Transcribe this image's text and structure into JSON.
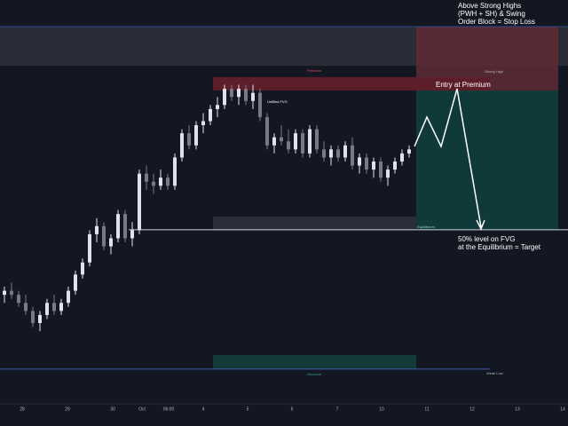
{
  "chart_data": {
    "type": "candlestick",
    "ylim": [
      0,
      100
    ],
    "candles": [
      [
        27,
        29,
        25,
        28
      ],
      [
        28,
        30,
        26,
        27
      ],
      [
        27,
        28,
        24,
        25
      ],
      [
        25,
        27,
        22,
        23
      ],
      [
        23,
        24,
        19,
        20
      ],
      [
        20,
        23,
        18,
        22
      ],
      [
        22,
        26,
        21,
        25
      ],
      [
        25,
        27,
        22,
        23
      ],
      [
        23,
        26,
        22,
        25
      ],
      [
        25,
        29,
        24,
        28
      ],
      [
        28,
        33,
        27,
        32
      ],
      [
        32,
        36,
        31,
        35
      ],
      [
        35,
        43,
        34,
        42
      ],
      [
        42,
        46,
        40,
        44
      ],
      [
        44,
        45,
        38,
        39
      ],
      [
        39,
        42,
        37,
        41
      ],
      [
        41,
        48,
        40,
        47
      ],
      [
        47,
        48,
        40,
        41
      ],
      [
        41,
        45,
        39,
        43
      ],
      [
        43,
        58,
        42,
        57
      ],
      [
        57,
        59,
        53,
        55
      ],
      [
        55,
        57,
        52,
        54
      ],
      [
        54,
        58,
        53,
        56
      ],
      [
        56,
        57,
        53,
        54
      ],
      [
        54,
        62,
        53,
        61
      ],
      [
        61,
        68,
        60,
        67
      ],
      [
        67,
        69,
        63,
        64
      ],
      [
        64,
        70,
        63,
        69
      ],
      [
        69,
        72,
        67,
        70
      ],
      [
        70,
        74,
        69,
        73
      ],
      [
        73,
        76,
        71,
        74
      ],
      [
        74,
        79,
        73,
        78
      ],
      [
        78,
        79,
        75,
        76
      ],
      [
        76,
        79,
        74,
        78
      ],
      [
        78,
        79,
        74,
        75
      ],
      [
        75,
        79,
        73,
        77
      ],
      [
        77,
        78,
        70,
        71
      ],
      [
        71,
        72,
        63,
        64
      ],
      [
        64,
        67,
        62,
        66
      ],
      [
        66,
        69,
        64,
        65
      ],
      [
        65,
        68,
        62,
        63
      ],
      [
        63,
        68,
        62,
        67
      ],
      [
        67,
        68,
        61,
        62
      ],
      [
        62,
        69,
        61,
        68
      ],
      [
        68,
        69,
        62,
        63
      ],
      [
        63,
        65,
        60,
        61
      ],
      [
        61,
        64,
        59,
        63
      ],
      [
        63,
        64,
        60,
        61
      ],
      [
        61,
        65,
        60,
        64
      ],
      [
        64,
        66,
        58,
        59
      ],
      [
        59,
        62,
        57,
        61
      ],
      [
        61,
        62,
        57,
        58
      ],
      [
        58,
        61,
        56,
        60
      ],
      [
        60,
        61,
        55,
        56
      ],
      [
        56,
        59,
        54,
        58
      ],
      [
        58,
        61,
        57,
        60
      ],
      [
        60,
        63,
        59,
        62
      ],
      [
        62,
        64,
        61,
        63
      ]
    ],
    "x_axis_labels": [
      "28",
      "29",
      "30",
      "Oct",
      "06:00",
      "4",
      "5",
      "6",
      "7",
      "10",
      "11",
      "12",
      "13",
      "14"
    ],
    "zones": [
      {
        "label": "Premium",
        "range": [
          80.9,
          77.6
        ],
        "color": "#5c1f2a"
      },
      {
        "label": "Equilibrium",
        "range": [
          46.4,
          43.1
        ],
        "color": "#2a2e39"
      },
      {
        "label": "Discount",
        "range": [
          12.1,
          8.6
        ],
        "color": "#123a38"
      }
    ],
    "top_band": [
      93.4,
      83.7
    ],
    "stop_zone": [
      93.4,
      77.6
    ],
    "target_zone": [
      77.6,
      43.1
    ],
    "equilibrium_line": 43.1,
    "bottom_line": 8.6,
    "labels": {
      "strong_high": "Strong High",
      "weak_low": "Weak Low",
      "unfilled_fvg": "Unfilled FVG"
    },
    "annotations": {
      "stop_loss": [
        "Above Strong Highs",
        "(PWH + SH) & Swing",
        "Order Block = Stop Loss"
      ],
      "entry": "Entry at Premium",
      "target": [
        "50% level on FVG",
        "at the Equilibrium = Target"
      ]
    }
  }
}
